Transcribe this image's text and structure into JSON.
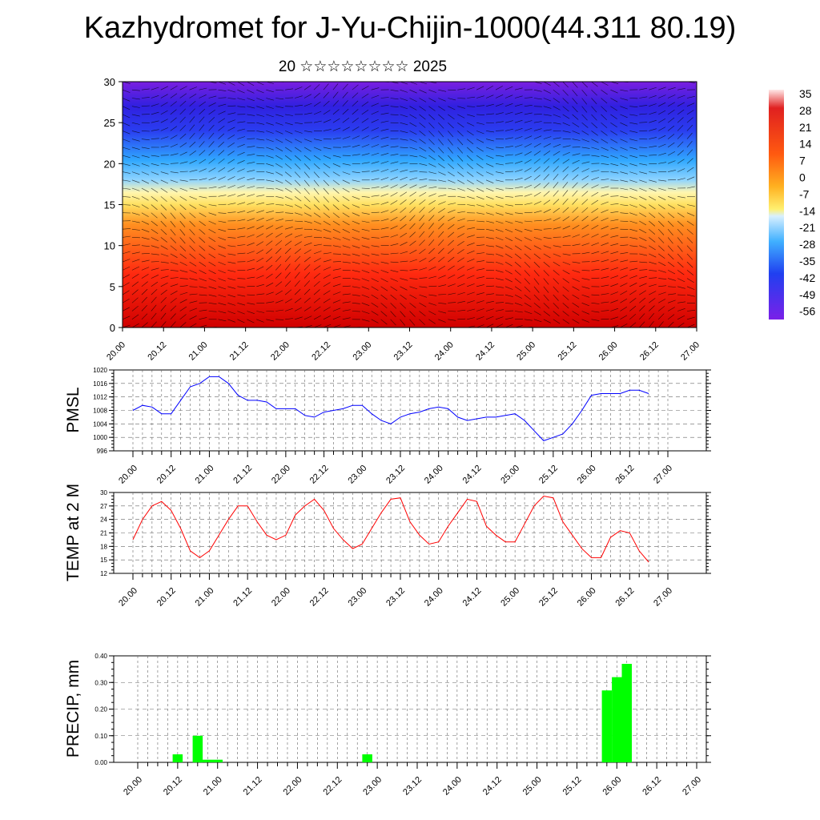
{
  "header": {
    "title": "Kazhydromet for J-Yu-Chijin-1000(44.311 80.19)",
    "subtitle": "20 ☆☆☆☆☆☆☆☆ 2025"
  },
  "time_labels": [
    "20.00",
    "20.12",
    "21.00",
    "21.12",
    "22.00",
    "22.12",
    "23.00",
    "23.12",
    "24.00",
    "24.12",
    "25.00",
    "25.12",
    "26.00",
    "26.12",
    "27.00"
  ],
  "chart_data": [
    {
      "type": "heatmap",
      "name": "temperature-wind-cross-section",
      "x_range": [
        0,
        168
      ],
      "ylim": [
        0,
        30
      ],
      "y_ticks": [
        0,
        5,
        10,
        15,
        20,
        25,
        30
      ],
      "colorbar_labels": [
        "35",
        "28",
        "21",
        "14",
        "7",
        "0",
        "-7",
        "-14",
        "-21",
        "-28",
        "-35",
        "-42",
        "-49",
        "-56"
      ],
      "colors": {
        "cold": "#7a1fe0",
        "cool": "#2a3ef0",
        "mild": "#8fd4ff",
        "warm": "#ffe060",
        "hot": "#ff2a10",
        "hottest": "#d00000"
      }
    },
    {
      "type": "line",
      "ylabel": "PMSL",
      "ylim": [
        996,
        1020
      ],
      "y_ticks": [
        996,
        1000,
        1004,
        1008,
        1012,
        1016,
        1020
      ],
      "color": "#0000ff",
      "x": [
        0,
        3,
        6,
        9,
        12,
        15,
        18,
        21,
        24,
        27,
        30,
        33,
        36,
        39,
        42,
        45,
        48,
        51,
        54,
        57,
        60,
        63,
        66,
        69,
        72,
        75,
        78,
        81,
        84,
        87,
        90,
        93,
        96,
        99,
        102,
        105,
        108,
        111,
        114,
        117,
        120,
        123,
        126,
        129,
        132,
        135,
        138,
        141,
        144,
        147,
        150,
        153,
        156,
        159,
        162
      ],
      "values": [
        1008,
        1009.5,
        1009,
        1007,
        1007,
        1011,
        1015,
        1016,
        1018,
        1018,
        1016,
        1012.5,
        1011,
        1011,
        1010.5,
        1008.5,
        1008.5,
        1008.5,
        1006.5,
        1006,
        1007.5,
        1008,
        1008.5,
        1009.5,
        1009.5,
        1007,
        1005,
        1004,
        1006,
        1007,
        1007.5,
        1008.5,
        1009,
        1008.5,
        1006,
        1005,
        1005.5,
        1006,
        1006,
        1006.5,
        1007,
        1005,
        1002,
        999,
        1000,
        1001,
        1004,
        1008,
        1012.5,
        1013,
        1013,
        1013,
        1014,
        1014,
        1013
      ]
    },
    {
      "type": "line",
      "ylabel": "TEMP at 2 M",
      "ylim": [
        12,
        30
      ],
      "y_ticks": [
        12,
        15,
        18,
        21,
        24,
        27,
        30
      ],
      "color": "#ff0000",
      "x": [
        0,
        3,
        6,
        9,
        12,
        15,
        18,
        21,
        24,
        27,
        30,
        33,
        36,
        39,
        42,
        45,
        48,
        51,
        54,
        57,
        60,
        63,
        66,
        69,
        72,
        75,
        78,
        81,
        84,
        87,
        90,
        93,
        96,
        99,
        102,
        105,
        108,
        111,
        114,
        117,
        120,
        123,
        126,
        129,
        132,
        135,
        138,
        141,
        144,
        147,
        150,
        153,
        156,
        159,
        162
      ],
      "values": [
        19.5,
        24,
        27,
        28,
        26,
        22,
        17,
        15.5,
        17,
        20.5,
        24,
        27,
        27,
        23.5,
        20.5,
        19.5,
        20.5,
        25,
        27,
        28.5,
        26,
        22,
        19.5,
        17.5,
        18.5,
        22,
        25.5,
        28.5,
        28.8,
        23.5,
        20.5,
        18.5,
        19,
        22.5,
        25.5,
        28.5,
        28,
        22.5,
        20.5,
        19,
        19,
        23,
        27,
        29.2,
        28.8,
        23.5,
        20.5,
        17.5,
        15.5,
        15.5,
        20,
        21.5,
        21,
        17,
        14.5
      ]
    },
    {
      "type": "bar",
      "ylabel": "PRECIP, mm",
      "ylim": [
        0,
        0.4
      ],
      "y_ticks": [
        "0.00",
        "0.10",
        "0.20",
        "0.30",
        "0.40"
      ],
      "color": "#00ff00",
      "bars": [
        {
          "x": 12,
          "value": 0.03
        },
        {
          "x": 18,
          "value": 0.1
        },
        {
          "x": 21,
          "value": 0.01
        },
        {
          "x": 24,
          "value": 0.01
        },
        {
          "x": 69,
          "value": 0.03
        },
        {
          "x": 141,
          "value": 0.27
        },
        {
          "x": 144,
          "value": 0.32
        },
        {
          "x": 147,
          "value": 0.37
        }
      ]
    }
  ]
}
